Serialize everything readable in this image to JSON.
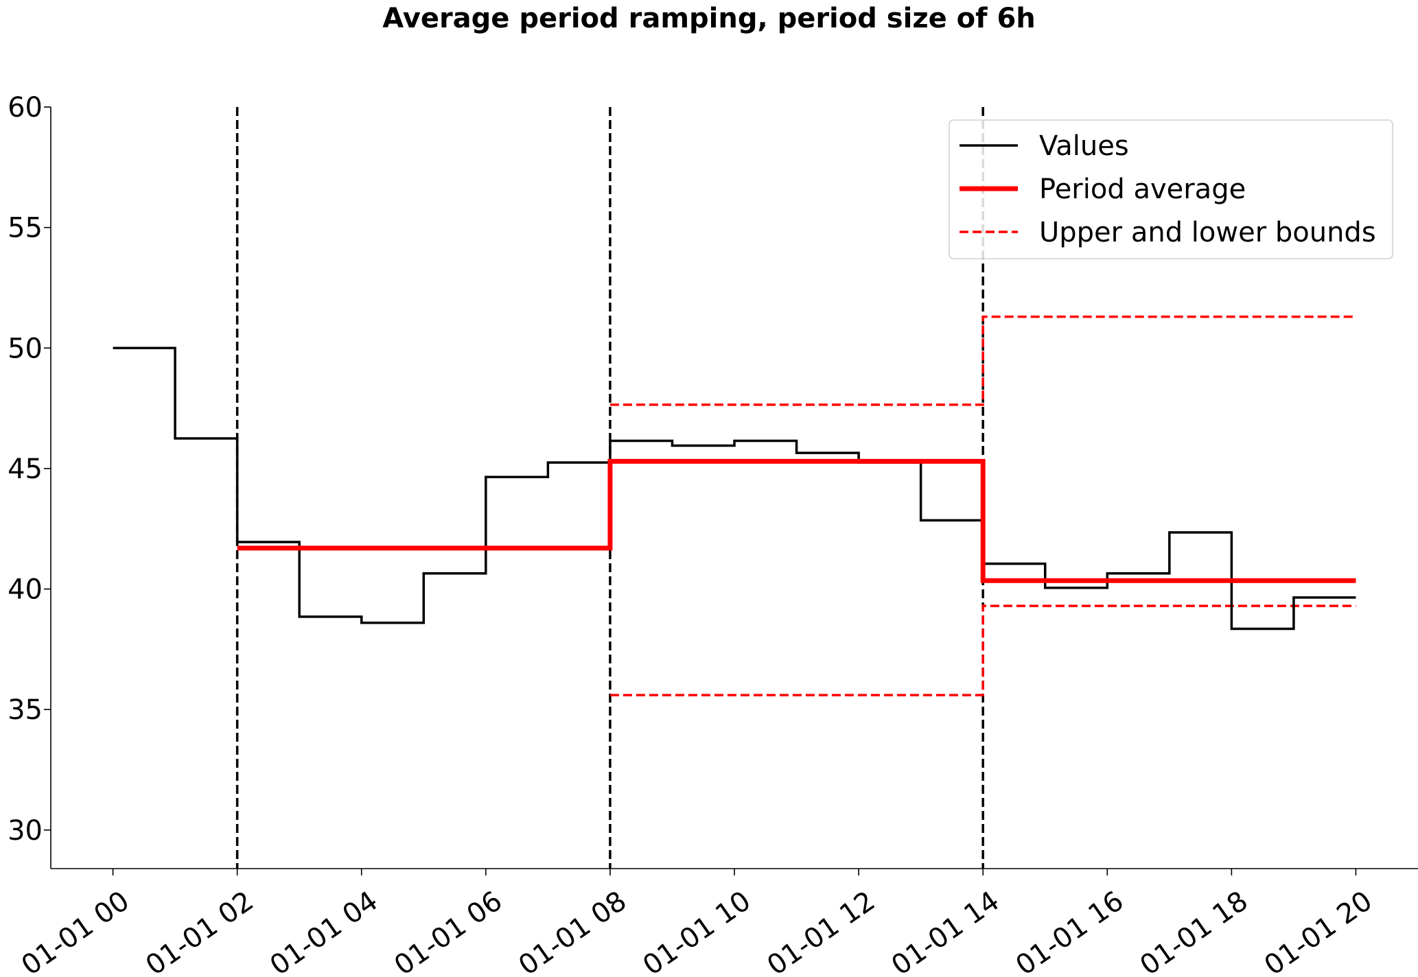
{
  "chart_data": {
    "type": "line",
    "title": "Average period ramping, period size of 6h",
    "xlabel": "",
    "ylabel": "",
    "x_axis": {
      "tick_labels": [
        "01-01 00",
        "01-01 02",
        "01-01 04",
        "01-01 06",
        "01-01 08",
        "01-01 10",
        "01-01 12",
        "01-01 14",
        "01-01 16",
        "01-01 18",
        "01-01 20"
      ],
      "tick_hours": [
        0,
        2,
        4,
        6,
        8,
        10,
        12,
        14,
        16,
        18,
        20
      ],
      "range_hours": [
        -1,
        21
      ]
    },
    "y_axis": {
      "ticks": [
        30,
        35,
        40,
        45,
        50,
        55,
        60
      ],
      "tick_labels": [
        "30",
        "35",
        "40",
        "45",
        "50",
        "55",
        "60"
      ],
      "ylim": [
        28.4,
        60
      ]
    },
    "grid": false,
    "legend": {
      "placement": "top-right",
      "entries": [
        {
          "label": "Values",
          "color": "#000000",
          "style": "solid-thin"
        },
        {
          "label": "Period average",
          "color": "#ff0000",
          "style": "solid-thick"
        },
        {
          "label": "Upper and lower bounds",
          "color": "#ff0000",
          "style": "dashed"
        }
      ]
    },
    "period_boundaries_hours": [
      2,
      8,
      14
    ],
    "series": [
      {
        "name": "Values",
        "color": "#000000",
        "step": "post",
        "x_hours": [
          0,
          1,
          2,
          3,
          4,
          5,
          6,
          7,
          8,
          9,
          10,
          11,
          12,
          13,
          14,
          15,
          16,
          17,
          18,
          19,
          20
        ],
        "y": [
          50.0,
          46.25,
          41.95,
          38.85,
          38.6,
          40.65,
          44.65,
          45.25,
          46.15,
          45.95,
          46.15,
          45.65,
          45.25,
          42.85,
          41.05,
          40.05,
          40.65,
          42.35,
          38.35,
          39.65,
          39.65
        ]
      },
      {
        "name": "Period average",
        "color": "#ff0000",
        "step": "post",
        "x_hours": [
          2,
          8,
          14,
          20
        ],
        "y": [
          41.7,
          45.3,
          40.35,
          40.35
        ]
      },
      {
        "name": "Upper and lower bounds",
        "color": "#ff0000",
        "step": "post",
        "segments": [
          {
            "x_hours": [
              8,
              14,
              20
            ],
            "y": [
              47.65,
              51.3,
              51.3
            ]
          },
          {
            "x_hours": [
              8,
              14,
              20
            ],
            "y": [
              35.6,
              39.3,
              39.3
            ]
          }
        ]
      }
    ]
  }
}
